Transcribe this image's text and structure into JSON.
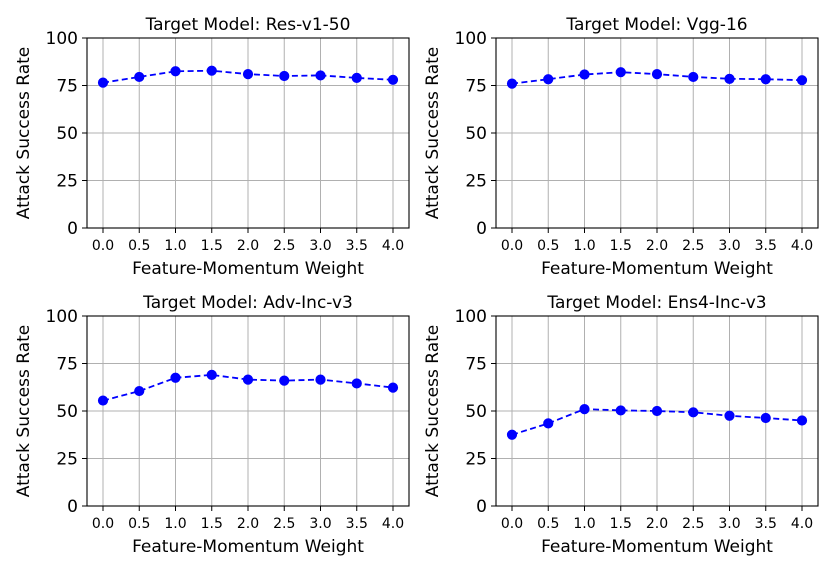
{
  "chart_data": [
    {
      "type": "line",
      "title": "Target Model: Res-v1-50",
      "xlabel": "Feature-Momentum Weight",
      "ylabel": "Attack Success Rate",
      "x": [
        0.0,
        0.5,
        1.0,
        1.5,
        2.0,
        2.5,
        3.0,
        3.5,
        4.0
      ],
      "x_tick_labels": [
        "0.0",
        "0.5",
        "1.0",
        "1.5",
        "2.0",
        "2.5",
        "3.0",
        "3.5",
        "4.0"
      ],
      "y_ticks": [
        0,
        25,
        50,
        75,
        100
      ],
      "y_tick_labels": [
        "0",
        "25",
        "50",
        "75",
        "100"
      ],
      "ylim": [
        0,
        100
      ],
      "grid": true,
      "series": [
        {
          "color": "#0000ff",
          "line_style": "dashed",
          "marker": "circle",
          "values": [
            76.5,
            79.5,
            82.5,
            82.8,
            81.0,
            80.0,
            80.3,
            79.0,
            78.0
          ]
        }
      ]
    },
    {
      "type": "line",
      "title": "Target Model: Vgg-16",
      "xlabel": "Feature-Momentum Weight",
      "ylabel": "Attack Success Rate",
      "x": [
        0.0,
        0.5,
        1.0,
        1.5,
        2.0,
        2.5,
        3.0,
        3.5,
        4.0
      ],
      "x_tick_labels": [
        "0.0",
        "0.5",
        "1.0",
        "1.5",
        "2.0",
        "2.5",
        "3.0",
        "3.5",
        "4.0"
      ],
      "y_ticks": [
        0,
        25,
        50,
        75,
        100
      ],
      "y_tick_labels": [
        "0",
        "25",
        "50",
        "75",
        "100"
      ],
      "ylim": [
        0,
        100
      ],
      "grid": true,
      "series": [
        {
          "color": "#0000ff",
          "line_style": "dashed",
          "marker": "circle",
          "values": [
            76.0,
            78.3,
            80.8,
            82.0,
            81.0,
            79.5,
            78.5,
            78.3,
            77.8
          ]
        }
      ]
    },
    {
      "type": "line",
      "title": "Target Model: Adv-Inc-v3",
      "xlabel": "Feature-Momentum Weight",
      "ylabel": "Attack Success Rate",
      "x": [
        0.0,
        0.5,
        1.0,
        1.5,
        2.0,
        2.5,
        3.0,
        3.5,
        4.0
      ],
      "x_tick_labels": [
        "0.0",
        "0.5",
        "1.0",
        "1.5",
        "2.0",
        "2.5",
        "3.0",
        "3.5",
        "4.0"
      ],
      "y_ticks": [
        0,
        25,
        50,
        75,
        100
      ],
      "y_tick_labels": [
        "0",
        "25",
        "50",
        "75",
        "100"
      ],
      "ylim": [
        0,
        100
      ],
      "grid": true,
      "series": [
        {
          "color": "#0000ff",
          "line_style": "dashed",
          "marker": "circle",
          "values": [
            55.5,
            60.5,
            67.5,
            69.0,
            66.5,
            66.0,
            66.5,
            64.5,
            62.3
          ]
        }
      ]
    },
    {
      "type": "line",
      "title": "Target Model: Ens4-Inc-v3",
      "xlabel": "Feature-Momentum Weight",
      "ylabel": "Attack Success Rate",
      "x": [
        0.0,
        0.5,
        1.0,
        1.5,
        2.0,
        2.5,
        3.0,
        3.5,
        4.0
      ],
      "x_tick_labels": [
        "0.0",
        "0.5",
        "1.0",
        "1.5",
        "2.0",
        "2.5",
        "3.0",
        "3.5",
        "4.0"
      ],
      "y_ticks": [
        0,
        25,
        50,
        75,
        100
      ],
      "y_tick_labels": [
        "0",
        "25",
        "50",
        "75",
        "100"
      ],
      "ylim": [
        0,
        100
      ],
      "grid": true,
      "series": [
        {
          "color": "#0000ff",
          "line_style": "dashed",
          "marker": "circle",
          "values": [
            37.5,
            43.5,
            51.0,
            50.3,
            50.0,
            49.3,
            47.5,
            46.3,
            45.0
          ]
        }
      ]
    }
  ]
}
